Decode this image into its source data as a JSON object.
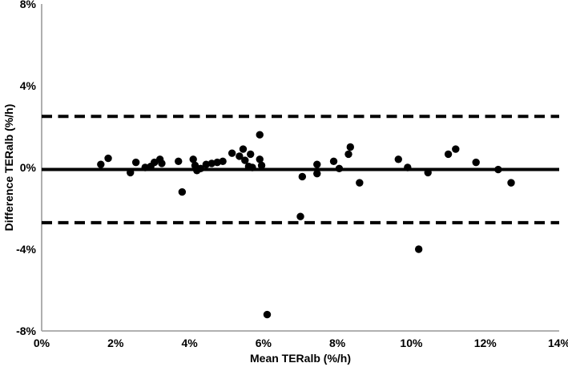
{
  "chart_data": {
    "type": "scatter",
    "title": "",
    "xlabel": "Mean TERalb (%/h)",
    "ylabel": "Difference TERalb (%/h)",
    "xlim": [
      0,
      14
    ],
    "ylim": [
      -8,
      8
    ],
    "grid": false,
    "legend": false,
    "x_ticks": [
      {
        "value": 0,
        "label": "0%"
      },
      {
        "value": 2,
        "label": "2%"
      },
      {
        "value": 4,
        "label": "4%"
      },
      {
        "value": 6,
        "label": "6%"
      },
      {
        "value": 8,
        "label": "8%"
      },
      {
        "value": 10,
        "label": "10%"
      },
      {
        "value": 12,
        "label": "12%"
      },
      {
        "value": 14,
        "label": "14%"
      }
    ],
    "y_ticks": [
      {
        "value": 8,
        "label": "8%"
      },
      {
        "value": 4,
        "label": "4%"
      },
      {
        "value": 0,
        "label": "0%"
      },
      {
        "value": -4,
        "label": "-4%"
      },
      {
        "value": -8,
        "label": "-8%"
      }
    ],
    "reference_lines": [
      {
        "name": "mean-bias-line",
        "value": -0.1,
        "style": "solid"
      },
      {
        "name": "upper-loa-line",
        "value": 2.5,
        "style": "dashed"
      },
      {
        "name": "lower-loa-line",
        "value": -2.7,
        "style": "dashed"
      }
    ],
    "points": [
      [
        1.6,
        0.15
      ],
      [
        1.8,
        0.45
      ],
      [
        2.4,
        -0.25
      ],
      [
        2.55,
        0.25
      ],
      [
        2.8,
        0.0
      ],
      [
        2.95,
        0.05
      ],
      [
        3.05,
        0.25
      ],
      [
        3.2,
        0.4
      ],
      [
        3.25,
        0.2
      ],
      [
        3.7,
        0.3
      ],
      [
        3.8,
        -1.2
      ],
      [
        4.1,
        0.4
      ],
      [
        4.15,
        0.1
      ],
      [
        4.2,
        -0.15
      ],
      [
        4.3,
        -0.05
      ],
      [
        4.45,
        0.15
      ],
      [
        4.6,
        0.2
      ],
      [
        4.75,
        0.25
      ],
      [
        4.9,
        0.3
      ],
      [
        5.15,
        0.7
      ],
      [
        5.35,
        0.55
      ],
      [
        5.45,
        0.9
      ],
      [
        5.5,
        0.35
      ],
      [
        5.6,
        0.05
      ],
      [
        5.65,
        0.65
      ],
      [
        5.7,
        0.0
      ],
      [
        5.9,
        1.6
      ],
      [
        5.9,
        0.4
      ],
      [
        5.95,
        0.1
      ],
      [
        6.1,
        -7.2
      ],
      [
        7.0,
        -2.4
      ],
      [
        7.05,
        -0.45
      ],
      [
        7.45,
        0.15
      ],
      [
        7.45,
        -0.3
      ],
      [
        7.9,
        0.3
      ],
      [
        8.05,
        -0.05
      ],
      [
        8.35,
        1.0
      ],
      [
        8.3,
        0.65
      ],
      [
        8.6,
        -0.75
      ],
      [
        9.65,
        0.4
      ],
      [
        9.9,
        0.0
      ],
      [
        10.2,
        -4.0
      ],
      [
        10.45,
        -0.25
      ],
      [
        11.0,
        0.65
      ],
      [
        11.2,
        0.9
      ],
      [
        11.75,
        0.25
      ],
      [
        12.35,
        -0.1
      ],
      [
        12.7,
        -0.75
      ]
    ],
    "colors": {
      "points": "#000000",
      "reference_lines": "#000000",
      "axis": "#a6a6a6",
      "text": "#000000",
      "background": "#ffffff"
    }
  }
}
